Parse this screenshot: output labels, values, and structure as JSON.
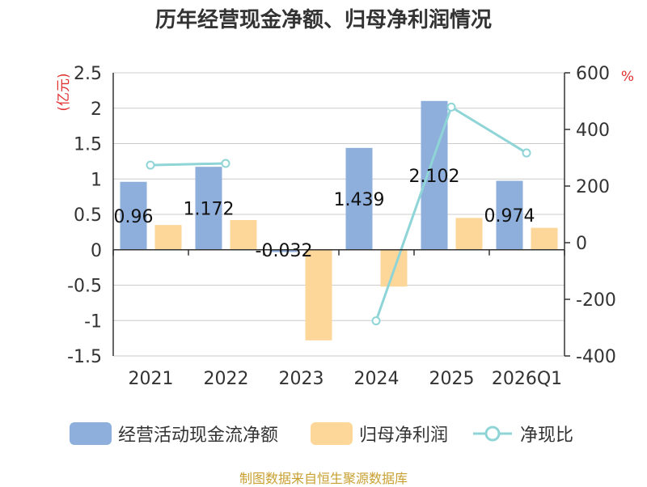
{
  "chart_data": {
    "type": "bar",
    "title": "历年经营现金净额、归母净利润情况",
    "categories": [
      "2021",
      "2022",
      "2023",
      "2024",
      "2025",
      "2026Q1"
    ],
    "ylabel_left": "(亿元)",
    "ylabel_right": "%",
    "ylim_left": [
      -1.5,
      2.5
    ],
    "ylim_right": [
      -400,
      600
    ],
    "yticks_left": [
      "2.5",
      "2",
      "1.5",
      "1",
      "0.5",
      "0",
      "-0.5",
      "-1",
      "-1.5"
    ],
    "yticks_right": [
      "600",
      "400",
      "200",
      "0",
      "-200",
      "-400"
    ],
    "series": [
      {
        "name": "经营活动现金流净额",
        "type": "bar",
        "axis": "left",
        "color": "#8eaedb",
        "values": [
          0.96,
          1.172,
          -0.032,
          1.439,
          2.102,
          0.974
        ],
        "labels": [
          "0.96",
          "1.172",
          "-0.032",
          "1.439",
          "2.102",
          "0.974"
        ]
      },
      {
        "name": "归母净利润",
        "type": "bar",
        "axis": "left",
        "color": "#fdd699",
        "values": [
          0.35,
          0.42,
          -1.28,
          -0.52,
          0.45,
          0.31
        ]
      },
      {
        "name": "净现比",
        "type": "line",
        "axis": "right",
        "color": "#8fd4d6",
        "values": [
          274,
          280,
          null,
          -276,
          479,
          317
        ]
      }
    ]
  },
  "source": "制图数据来自恒生聚源数据库"
}
